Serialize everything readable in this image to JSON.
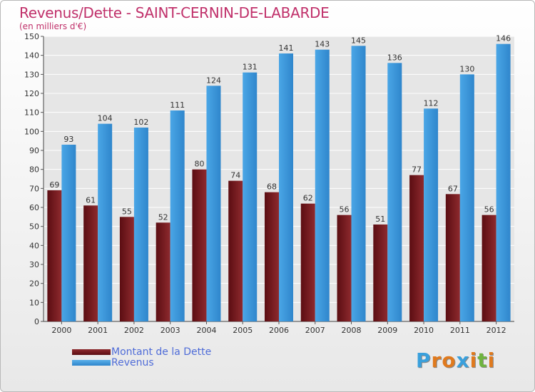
{
  "chart_data": {
    "type": "bar",
    "title": "Revenus/Dette - SAINT-CERNIN-DE-LABARDE",
    "subtitle": "(en milliers d'€)",
    "xlabel": "",
    "ylabel": "",
    "ylim": [
      0,
      150
    ],
    "yticks": [
      0,
      10,
      20,
      30,
      40,
      50,
      60,
      70,
      80,
      90,
      100,
      110,
      120,
      130,
      140,
      150
    ],
    "grid": true,
    "categories": [
      "2000",
      "2001",
      "2002",
      "2003",
      "2004",
      "2005",
      "2006",
      "2007",
      "2008",
      "2009",
      "2010",
      "2011",
      "2012"
    ],
    "series": [
      {
        "name": "Montant de la Dette",
        "color": "#7a1a1f",
        "values": [
          69,
          61,
          55,
          52,
          80,
          74,
          68,
          62,
          56,
          51,
          77,
          67,
          56
        ]
      },
      {
        "name": "Revenus",
        "color": "#3d97dc",
        "values": [
          93,
          104,
          102,
          111,
          124,
          131,
          141,
          143,
          145,
          136,
          112,
          130,
          146
        ]
      }
    ],
    "legend_position": "bottom-left"
  },
  "branding": {
    "logo_letters": [
      "P",
      "r",
      "o",
      "x",
      "i",
      "t",
      "i"
    ],
    "logo_colors": [
      "#3aa0dc",
      "#e07a1e",
      "#e07a1e",
      "#3aa0dc",
      "#e07a1e",
      "#6fb43f",
      "#e07a1e"
    ]
  }
}
